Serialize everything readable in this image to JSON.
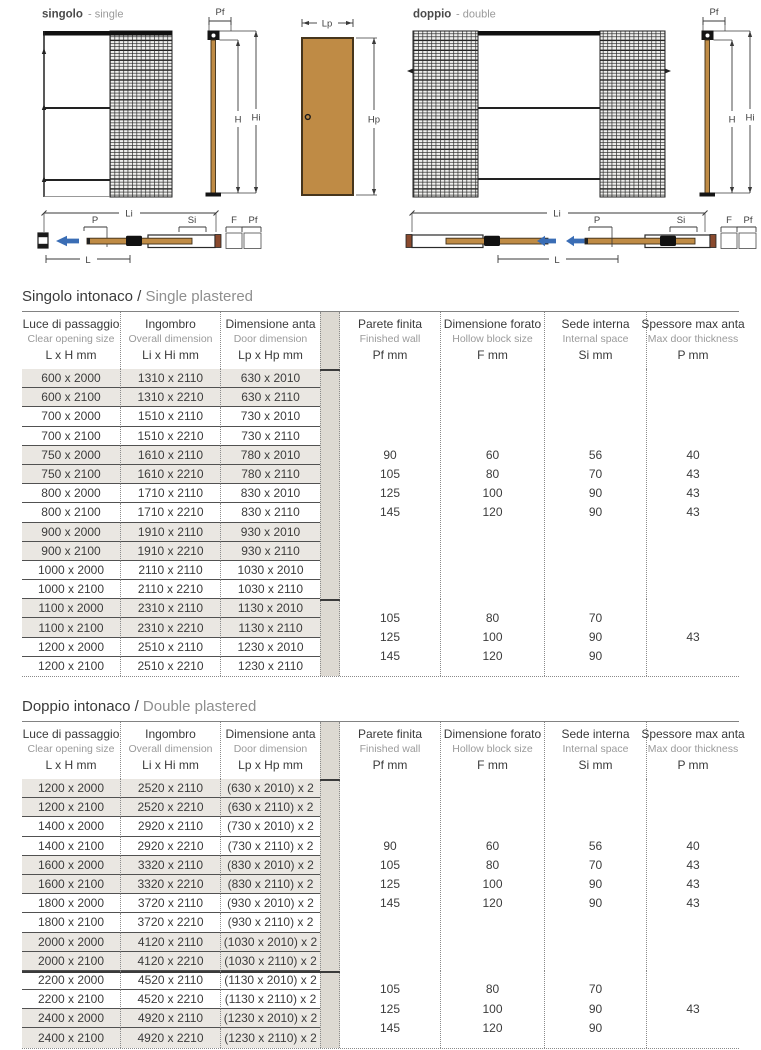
{
  "diagrams": {
    "singolo": {
      "main": "singolo",
      "sub": "- single"
    },
    "doppio": {
      "main": "doppio",
      "sub": "- double"
    },
    "dims": {
      "pf": "Pf",
      "h": "H",
      "hi": "Hi",
      "lp": "Lp",
      "hp": "Hp",
      "li": "Li",
      "p": "P",
      "si": "Si",
      "f": "F",
      "l": "L"
    },
    "colors": {
      "door": "#bf8b45",
      "arrow": "#3a6db5",
      "mesh_line": "#2e2e2e",
      "table_stripe": "#eae7e2",
      "separator_strip": "#ddd9d2"
    }
  },
  "tables": [
    {
      "title_it": "Singolo intonaco /",
      "title_en": "Single plastered",
      "columns": [
        {
          "it": "Luce di passaggio",
          "en": "Clear opening size",
          "unit": "L x H mm"
        },
        {
          "it": "Ingombro",
          "en": "Overall dimension",
          "unit": "Li x Hi mm"
        },
        {
          "it": "Dimensione anta",
          "en": "Door dimension",
          "unit": "Lp x Hp mm"
        },
        {
          "it": "Parete finita",
          "en": "Finished wall",
          "unit": "Pf mm"
        },
        {
          "it": "Dimensione forato",
          "en": "Hollow block size",
          "unit": "F mm"
        },
        {
          "it": "Sede interna",
          "en": "Internal space",
          "unit": "Si mm"
        },
        {
          "it": "Spessore max anta",
          "en": "Max door thickness",
          "unit": "P mm"
        }
      ],
      "groups": [
        {
          "rows": [
            [
              "600 x 2000",
              "1310 x 2110",
              "630 x 2010"
            ],
            [
              "600 x 2100",
              "1310 x 2210",
              "630 x 2110"
            ],
            [
              "700 x 2000",
              "1510 x 2110",
              "730 x 2010"
            ],
            [
              "700 x 2100",
              "1510 x 2210",
              "730 x 2110"
            ],
            [
              "750 x 2000",
              "1610 x 2110",
              "780 x 2010"
            ],
            [
              "750 x 2100",
              "1610 x 2210",
              "780 x 2110"
            ],
            [
              "800 x 2000",
              "1710 x 2110",
              "830 x 2010"
            ],
            [
              "800 x 2100",
              "1710 x 2210",
              "830 x 2110"
            ],
            [
              "900 x 2000",
              "1910 x 2110",
              "930 x 2010"
            ],
            [
              "900 x 2100",
              "1910 x 2210",
              "930 x 2110"
            ],
            [
              "1000 x 2000",
              "2110 x 2110",
              "1030 x 2010"
            ],
            [
              "1000 x 2100",
              "2110 x 2210",
              "1030 x 2110"
            ]
          ],
          "pf": [
            "90",
            "105",
            "125",
            "145"
          ],
          "f": [
            "60",
            "80",
            "100",
            "120"
          ],
          "si": [
            "56",
            "70",
            "90",
            "90"
          ],
          "p": [
            "40",
            "43",
            "43",
            "43"
          ]
        },
        {
          "rows": [
            [
              "1100 x 2000",
              "2310 x 2110",
              "1130 x 2010"
            ],
            [
              "1100 x 2100",
              "2310 x 2210",
              "1130 x 2110"
            ],
            [
              "1200 x 2000",
              "2510 x 2110",
              "1230 x 2010"
            ],
            [
              "1200 x 2100",
              "2510 x 2210",
              "1230 x 2110"
            ]
          ],
          "pf": [
            "105",
            "125",
            "145"
          ],
          "f": [
            "80",
            "100",
            "120"
          ],
          "si": [
            "70",
            "90",
            "90"
          ],
          "p": [
            "43"
          ]
        }
      ]
    },
    {
      "title_it": "Doppio intonaco /",
      "title_en": "Double plastered",
      "columns": [
        {
          "it": "Luce di passaggio",
          "en": "Clear opening size",
          "unit": "L x H mm"
        },
        {
          "it": "Ingombro",
          "en": "Overall dimension",
          "unit": "Li x Hi mm"
        },
        {
          "it": "Dimensione anta",
          "en": "Door dimension",
          "unit": "Lp x Hp mm"
        },
        {
          "it": "Parete finita",
          "en": "Finished wall",
          "unit": "Pf mm"
        },
        {
          "it": "Dimensione forato",
          "en": "Hollow block size",
          "unit": "F mm"
        },
        {
          "it": "Sede interna",
          "en": "Internal space",
          "unit": "Si mm"
        },
        {
          "it": "Spessore max anta",
          "en": "Max door thickness",
          "unit": "P mm"
        }
      ],
      "groups": [
        {
          "rows": [
            [
              "1200 x 2000",
              "2520 x 2110",
              "(630 x 2010) x 2"
            ],
            [
              "1200 x 2100",
              "2520 x 2210",
              "(630 x 2110) x 2"
            ],
            [
              "1400 x 2000",
              "2920 x 2110",
              "(730 x 2010) x 2"
            ],
            [
              "1400 x 2100",
              "2920 x 2210",
              "(730 x 2110) x 2"
            ],
            [
              "1600 x 2000",
              "3320 x 2110",
              "(830 x 2010) x 2"
            ],
            [
              "1600 x 2100",
              "3320 x 2210",
              "(830 x 2110) x 2"
            ],
            [
              "1800 x 2000",
              "3720 x 2110",
              "(930 x 2010) x 2"
            ],
            [
              "1800 x 2100",
              "3720 x 2210",
              "(930 x 2110) x 2"
            ],
            [
              "2000 x 2000",
              "4120 x 2110",
              "(1030 x 2010) x 2"
            ],
            [
              "2000 x 2100",
              "4120 x 2210",
              "(1030 x 2110) x 2"
            ]
          ],
          "pf": [
            "90",
            "105",
            "125",
            "145"
          ],
          "f": [
            "60",
            "80",
            "100",
            "120"
          ],
          "si": [
            "56",
            "70",
            "90",
            "90"
          ],
          "p": [
            "40",
            "43",
            "43",
            "43"
          ]
        },
        {
          "rows": [
            [
              "2200 x 2000",
              "4520 x 2110",
              "(1130 x 2010) x 2"
            ],
            [
              "2200 x 2100",
              "4520 x 2210",
              "(1130 x 2110) x 2"
            ],
            [
              "2400 x 2000",
              "4920 x 2110",
              "(1230 x 2010) x 2"
            ],
            [
              "2400 x 2100",
              "4920 x 2210",
              "(1230 x 2110) x 2"
            ]
          ],
          "pf": [
            "105",
            "125",
            "145"
          ],
          "f": [
            "80",
            "100",
            "120"
          ],
          "si": [
            "70",
            "90",
            "90"
          ],
          "p": [
            "43"
          ]
        }
      ]
    }
  ]
}
